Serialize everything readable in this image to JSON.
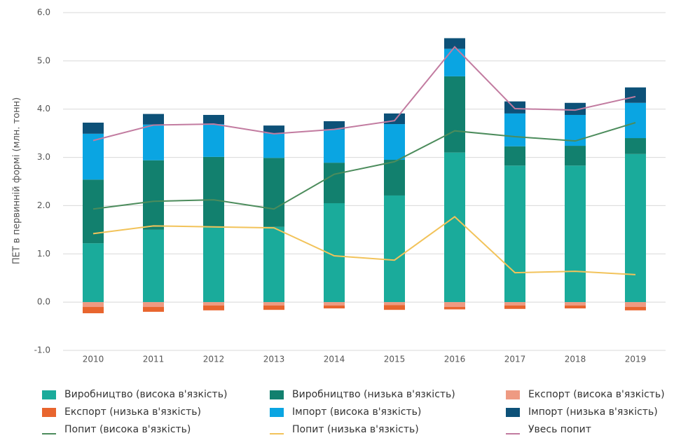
{
  "chart_data": {
    "type": "bar",
    "y_label": "ПЕТ в первинній формі (млн. тонн)",
    "categories": [
      "2010",
      "2011",
      "2012",
      "2013",
      "2014",
      "2015",
      "2016",
      "2017",
      "2018",
      "2019"
    ],
    "ylim": [
      -1.0,
      6.0
    ],
    "yticks": [
      {
        "value": -1,
        "label": "-1.0"
      },
      {
        "value": 0,
        "label": "0.0"
      },
      {
        "value": 1,
        "label": "1.0"
      },
      {
        "value": 2,
        "label": "2.0"
      },
      {
        "value": 3,
        "label": "3.0"
      },
      {
        "value": 4,
        "label": "4.0"
      },
      {
        "value": 5,
        "label": "5.0"
      },
      {
        "value": 6,
        "label": "6.0"
      }
    ],
    "grid": true,
    "series": [
      {
        "name": "Виробництво (висока в'язкість)",
        "type": "bar",
        "color": "#1aab9b",
        "values": [
          1.22,
          1.5,
          1.57,
          1.56,
          2.05,
          2.21,
          3.1,
          2.83,
          2.83,
          3.07
        ]
      },
      {
        "name": "Виробництво (низька в'язкість)",
        "type": "bar",
        "color": "#12806e",
        "values": [
          1.32,
          1.44,
          1.44,
          1.43,
          0.84,
          0.74,
          1.58,
          0.4,
          0.41,
          0.33
        ]
      },
      {
        "name": "Експорт (висока в'язкість)",
        "type": "bar",
        "color": "#ee9a82",
        "values": [
          -0.1,
          -0.1,
          -0.07,
          -0.07,
          -0.07,
          -0.06,
          -0.1,
          -0.07,
          -0.07,
          -0.1
        ]
      },
      {
        "name": "Експорт (низька в'язкість)",
        "type": "bar",
        "color": "#e8652e",
        "values": [
          -0.13,
          -0.1,
          -0.1,
          -0.09,
          -0.06,
          -0.1,
          -0.05,
          -0.07,
          -0.06,
          -0.07
        ]
      },
      {
        "name": "Імпорт (висока в'язкість)",
        "type": "bar",
        "color": "#0aa5e2",
        "values": [
          0.95,
          0.74,
          0.68,
          0.51,
          0.69,
          0.74,
          0.57,
          0.68,
          0.64,
          0.73
        ]
      },
      {
        "name": "Імпорт (низька в'язкість)",
        "type": "bar",
        "color": "#0d5178",
        "values": [
          0.23,
          0.22,
          0.19,
          0.16,
          0.17,
          0.22,
          0.22,
          0.25,
          0.25,
          0.32
        ]
      },
      {
        "name": "Попит (висока в'язкість)",
        "type": "line",
        "color": "#4c8c5c",
        "values": [
          1.93,
          2.09,
          2.12,
          1.93,
          2.65,
          2.91,
          3.55,
          3.43,
          3.34,
          3.72
        ]
      },
      {
        "name": "Попит (низька в'язкість)",
        "type": "line",
        "color": "#f2c35a",
        "values": [
          1.42,
          1.58,
          1.56,
          1.54,
          0.96,
          0.87,
          1.77,
          0.61,
          0.64,
          0.57
        ]
      },
      {
        "name": "Увесь попит",
        "type": "line",
        "color": "#c27ba0",
        "values": [
          3.35,
          3.67,
          3.69,
          3.49,
          3.58,
          3.76,
          5.29,
          4.01,
          3.98,
          4.26
        ]
      }
    ]
  }
}
